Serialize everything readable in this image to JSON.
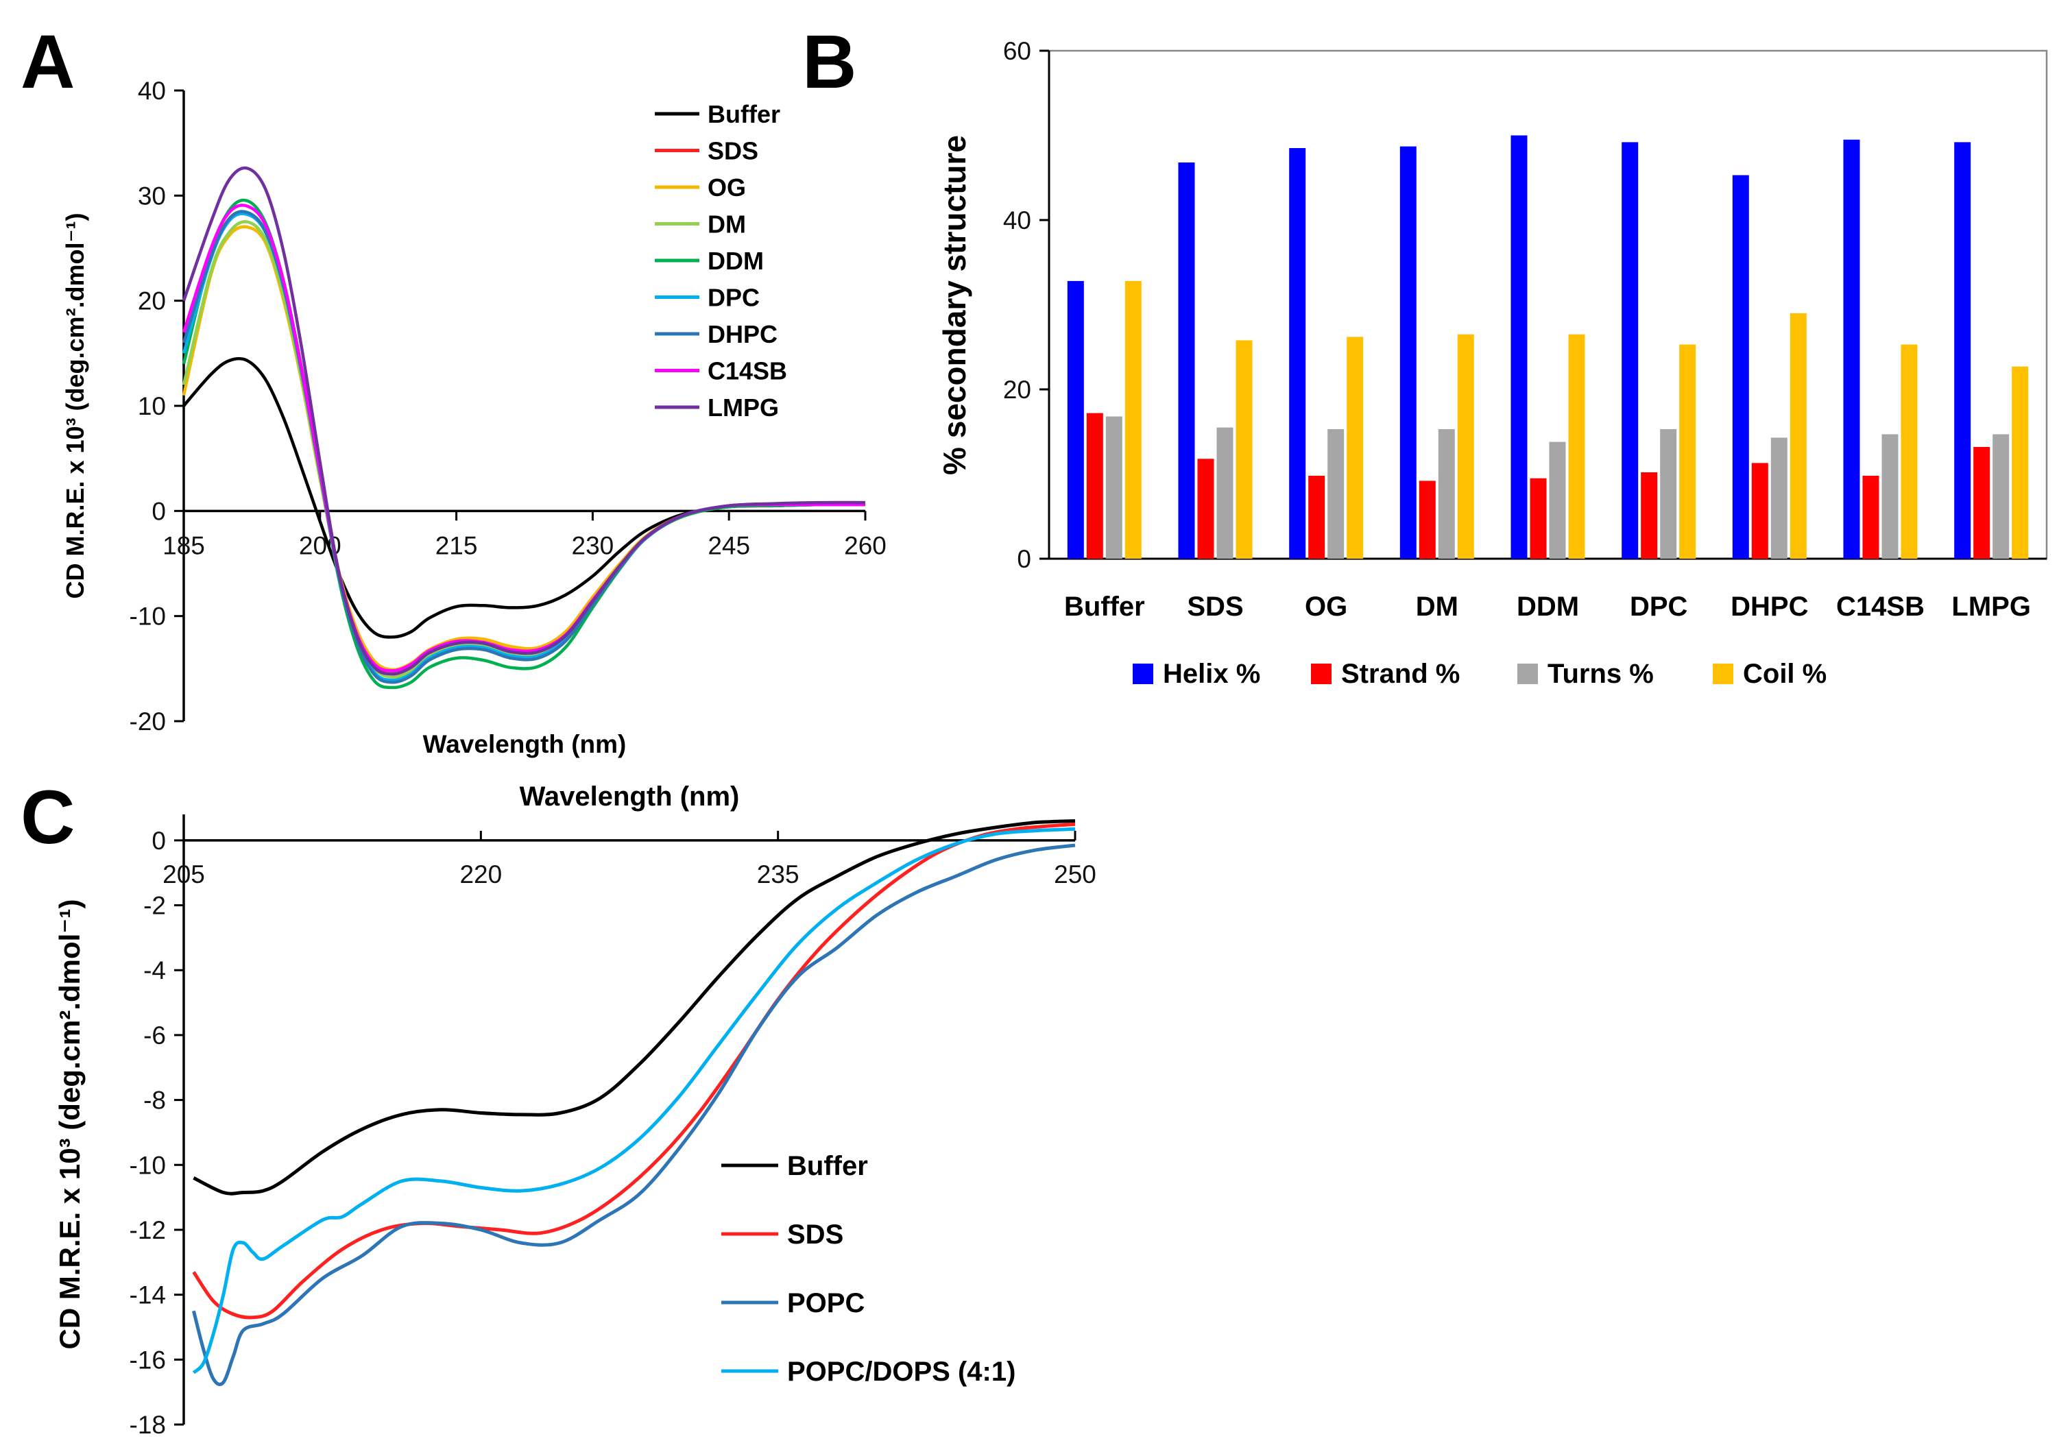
{
  "panels": {
    "a": "A",
    "b": "B",
    "c": "C"
  },
  "chart_data": [
    {
      "id": "A",
      "type": "line",
      "xlabel": "Wavelength (nm)",
      "ylabel": "CD M.R.E. x 10³ (deg.cm².dmol⁻¹)",
      "ylabel_sub": "M.R.E.",
      "xlim": [
        185,
        260
      ],
      "ylim": [
        -20,
        40
      ],
      "xticks": [
        185,
        200,
        215,
        230,
        245,
        260
      ],
      "yticks": [
        -20,
        -10,
        0,
        10,
        20,
        30,
        40
      ],
      "x": [
        185,
        188,
        190,
        192,
        194,
        196,
        198,
        200,
        202,
        204,
        206,
        208,
        210,
        212,
        215,
        218,
        221,
        224,
        227,
        230,
        233,
        236,
        240,
        245,
        250,
        255,
        260
      ],
      "series": [
        {
          "name": "Buffer",
          "color": "#000000",
          "values": [
            10,
            13,
            14.3,
            14.3,
            12.5,
            8.8,
            4,
            -1,
            -5.8,
            -9.5,
            -11.6,
            -12,
            -11.5,
            -10.2,
            -9.1,
            -9,
            -9.2,
            -9,
            -8,
            -6.2,
            -3.8,
            -1.8,
            -0.3,
            0.4,
            0.5,
            0.6,
            0.6
          ]
        },
        {
          "name": "SDS",
          "color": "#ff2222",
          "values": [
            17,
            24.5,
            27.8,
            28.3,
            26.5,
            21,
            13,
            3.5,
            -5.5,
            -11.5,
            -14.7,
            -15.6,
            -15,
            -13.6,
            -12.5,
            -12.5,
            -13.3,
            -13.4,
            -11.8,
            -8.4,
            -5.1,
            -2.4,
            -0.4,
            0.5,
            0.6,
            0.6,
            0.6
          ]
        },
        {
          "name": "OG",
          "color": "#f5b800",
          "values": [
            11,
            22.5,
            26.2,
            27,
            25.5,
            20,
            12.2,
            3,
            -5.5,
            -11.2,
            -14.3,
            -15.1,
            -14.5,
            -13.2,
            -12.2,
            -12.2,
            -12.9,
            -13,
            -11.5,
            -8.2,
            -5,
            -2.3,
            -0.4,
            0.5,
            0.6,
            0.6,
            0.6
          ]
        },
        {
          "name": "DM",
          "color": "#92d050",
          "values": [
            12,
            22.8,
            26.5,
            27.5,
            25.8,
            20.5,
            12.5,
            3.2,
            -5.8,
            -11.8,
            -15,
            -15.8,
            -15.2,
            -13.8,
            -12.8,
            -12.8,
            -13.6,
            -13.6,
            -12,
            -8.6,
            -5.2,
            -2.4,
            -0.4,
            0.5,
            0.6,
            0.6,
            0.6
          ]
        },
        {
          "name": "DDM",
          "color": "#00b050",
          "values": [
            14,
            24.5,
            28.6,
            29.5,
            27.4,
            21.8,
            13.5,
            3.8,
            -6.2,
            -12.8,
            -16.2,
            -16.8,
            -16.3,
            -14.9,
            -14,
            -14.2,
            -14.9,
            -14.8,
            -13,
            -9.2,
            -5.5,
            -2.5,
            -0.5,
            0.4,
            0.5,
            0.6,
            0.6
          ]
        },
        {
          "name": "DPC",
          "color": "#00b0f0",
          "values": [
            15,
            24,
            27.6,
            28.2,
            26.5,
            21.2,
            13,
            3.5,
            -5.8,
            -12,
            -15.4,
            -16.1,
            -15.5,
            -14,
            -13,
            -13,
            -13.8,
            -13.8,
            -12.2,
            -8.8,
            -5.3,
            -2.5,
            -0.4,
            0.5,
            0.6,
            0.6,
            0.6
          ]
        },
        {
          "name": "DHPC",
          "color": "#2e75b6",
          "values": [
            16,
            24.2,
            27.8,
            28.4,
            26.6,
            21.3,
            13.1,
            3.6,
            -5.9,
            -12.2,
            -15.6,
            -16.3,
            -15.7,
            -14.2,
            -13.2,
            -13.2,
            -14,
            -14,
            -12.4,
            -8.9,
            -5.4,
            -2.5,
            -0.4,
            0.5,
            0.6,
            0.6,
            0.6
          ]
        },
        {
          "name": "C14SB",
          "color": "#ff00ff",
          "values": [
            17,
            25,
            28.4,
            29,
            27.2,
            21.8,
            13.4,
            3.8,
            -5.6,
            -11.6,
            -14.6,
            -15.2,
            -14.6,
            -13.3,
            -12.4,
            -12.5,
            -13.2,
            -13.2,
            -11.8,
            -8.5,
            -5.2,
            -2.4,
            -0.4,
            0.5,
            0.6,
            0.6,
            0.6
          ]
        },
        {
          "name": "LMPG",
          "color": "#7030a0",
          "values": [
            20,
            27.5,
            31.5,
            32.6,
            30.6,
            24.6,
            15.4,
            4.6,
            -5.6,
            -11.8,
            -14.9,
            -15.5,
            -14.9,
            -13.5,
            -12.6,
            -12.6,
            -13.4,
            -13.4,
            -11.9,
            -8.6,
            -5.2,
            -2.4,
            -0.4,
            0.5,
            0.7,
            0.8,
            0.8
          ]
        }
      ]
    },
    {
      "id": "B",
      "type": "bar",
      "ylabel": "% secondary structure",
      "ylim": [
        0,
        60
      ],
      "yticks": [
        0,
        20,
        40,
        60
      ],
      "categories": [
        "Buffer",
        "SDS",
        "OG",
        "DM",
        "DDM",
        "DPC",
        "DHPC",
        "C14SB",
        "LMPG"
      ],
      "series": [
        {
          "name": "Helix %",
          "color": "#0000ff",
          "values": [
            32.8,
            46.8,
            48.5,
            48.7,
            50.0,
            49.2,
            45.3,
            49.5,
            49.2
          ]
        },
        {
          "name": "Strand %",
          "color": "#ff0000",
          "values": [
            17.2,
            11.8,
            9.8,
            9.2,
            9.5,
            10.2,
            11.3,
            9.8,
            13.2
          ]
        },
        {
          "name": "Turns %",
          "color": "#a6a6a6",
          "values": [
            16.8,
            15.5,
            15.3,
            15.3,
            13.8,
            15.3,
            14.3,
            14.7,
            14.7
          ]
        },
        {
          "name": "Coil %",
          "color": "#ffc000",
          "values": [
            32.8,
            25.8,
            26.2,
            26.5,
            26.5,
            25.3,
            29.0,
            25.3,
            22.7
          ]
        }
      ]
    },
    {
      "id": "C",
      "type": "line",
      "xlabel": "Wavelength (nm)",
      "ylabel": "CD M.R.E. x 10³ (deg.cm².dmol⁻¹)",
      "ylabel_sub": "M.R.E.",
      "xlim": [
        205,
        250
      ],
      "ylim": [
        -18,
        0.8
      ],
      "xticks": [
        205,
        220,
        235,
        250
      ],
      "yticks": [
        -18,
        -16,
        -14,
        -12,
        -10,
        -8,
        -6,
        -4,
        -2,
        0
      ],
      "series": [
        {
          "name": "Buffer",
          "color": "#000000",
          "x": [
            205.5,
            207,
            208,
            209,
            210,
            212,
            214,
            216,
            218,
            220,
            222,
            224,
            226,
            228,
            230,
            232,
            234,
            236,
            238,
            240,
            242,
            244,
            246,
            248,
            250
          ],
          "values": [
            -10.4,
            -10.85,
            -10.85,
            -10.8,
            -10.5,
            -9.6,
            -8.9,
            -8.45,
            -8.3,
            -8.4,
            -8.45,
            -8.4,
            -7.95,
            -6.9,
            -5.6,
            -4.2,
            -2.9,
            -1.8,
            -1.1,
            -0.5,
            -0.1,
            0.2,
            0.4,
            0.55,
            0.6
          ]
        },
        {
          "name": "SDS",
          "color": "#ff2020",
          "x": [
            205.5,
            206.5,
            207.5,
            208.5,
            209.5,
            211,
            213,
            215,
            217,
            219,
            221,
            223,
            225,
            227,
            229,
            231,
            233,
            235,
            237,
            239,
            241,
            243,
            245,
            247,
            250
          ],
          "values": [
            -13.3,
            -14.2,
            -14.6,
            -14.7,
            -14.5,
            -13.6,
            -12.6,
            -12,
            -11.8,
            -11.9,
            -12,
            -12.1,
            -11.7,
            -10.9,
            -9.8,
            -8.4,
            -6.7,
            -4.9,
            -3.4,
            -2.2,
            -1.2,
            -0.4,
            0.1,
            0.35,
            0.5
          ]
        },
        {
          "name": "POPC",
          "color": "#2e75b6",
          "x": [
            205.5,
            206,
            206.5,
            207,
            207.5,
            208,
            209,
            210,
            212,
            214,
            216,
            218,
            220,
            222,
            224,
            226,
            228,
            230,
            232,
            234,
            236,
            238,
            240,
            242,
            244,
            246,
            248,
            250
          ],
          "values": [
            -14.5,
            -15.7,
            -16.6,
            -16.7,
            -15.9,
            -15.1,
            -14.9,
            -14.6,
            -13.5,
            -12.8,
            -11.9,
            -11.8,
            -12,
            -12.4,
            -12.4,
            -11.7,
            -10.9,
            -9.5,
            -7.8,
            -5.8,
            -4.2,
            -3.3,
            -2.3,
            -1.6,
            -1.1,
            -0.6,
            -0.3,
            -0.15
          ]
        },
        {
          "name": "POPC/DOPS (4:1)",
          "color": "#00b0f0",
          "x": [
            205.5,
            206,
            206.5,
            207,
            207.5,
            208,
            208.5,
            209,
            210,
            212,
            213,
            214,
            216,
            218,
            220,
            222,
            224,
            226,
            228,
            230,
            232,
            234,
            236,
            238,
            240,
            242,
            244,
            246,
            248,
            250
          ],
          "values": [
            -16.4,
            -16.1,
            -15.2,
            -14,
            -12.6,
            -12.4,
            -12.7,
            -12.9,
            -12.5,
            -11.7,
            -11.6,
            -11.2,
            -10.5,
            -10.5,
            -10.7,
            -10.8,
            -10.6,
            -10.1,
            -9.2,
            -7.9,
            -6.3,
            -4.7,
            -3.2,
            -2.1,
            -1.3,
            -0.6,
            -0.1,
            0.2,
            0.3,
            0.35
          ]
        }
      ]
    }
  ]
}
